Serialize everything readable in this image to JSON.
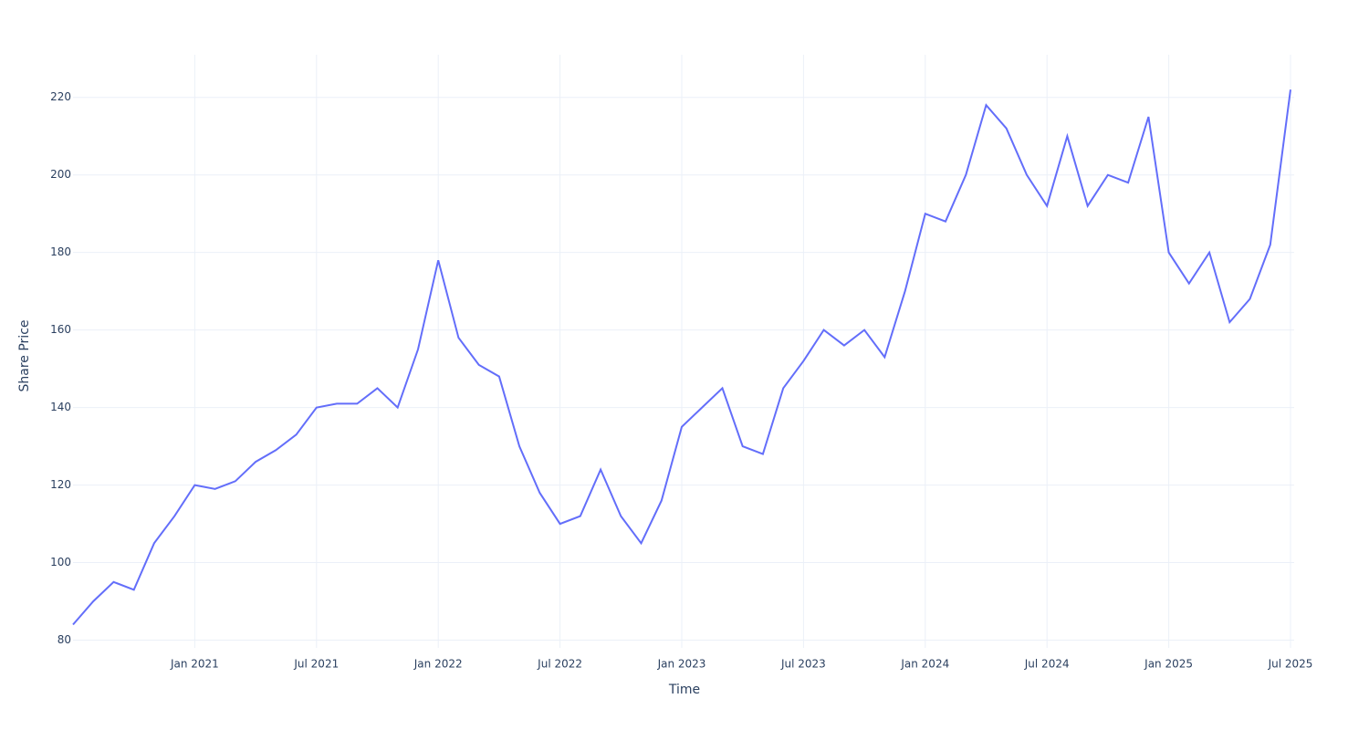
{
  "chart_data": {
    "type": "line",
    "x_label": "Time",
    "y_label": "Share Price",
    "x": [
      "2020-07",
      "2020-08",
      "2020-09",
      "2020-10",
      "2020-11",
      "2020-12",
      "2021-01",
      "2021-02",
      "2021-03",
      "2021-04",
      "2021-05",
      "2021-06",
      "2021-07",
      "2021-08",
      "2021-09",
      "2021-10",
      "2021-11",
      "2021-12",
      "2022-01",
      "2022-02",
      "2022-03",
      "2022-04",
      "2022-05",
      "2022-06",
      "2022-07",
      "2022-08",
      "2022-09",
      "2022-10",
      "2022-11",
      "2022-12",
      "2023-01",
      "2023-02",
      "2023-03",
      "2023-04",
      "2023-05",
      "2023-06",
      "2023-07",
      "2023-08",
      "2023-09",
      "2023-10",
      "2023-11",
      "2023-12",
      "2024-01",
      "2024-02",
      "2024-03",
      "2024-04",
      "2024-05",
      "2024-06",
      "2024-07",
      "2024-08",
      "2024-09",
      "2024-10",
      "2024-11",
      "2024-12",
      "2025-01",
      "2025-02",
      "2025-03",
      "2025-04",
      "2025-05",
      "2025-06",
      "2025-07"
    ],
    "series": [
      {
        "name": "Share Price",
        "color": "#636efa",
        "values": [
          84,
          90,
          95,
          93,
          105,
          112,
          120,
          119,
          121,
          126,
          129,
          133,
          140,
          141,
          141,
          145,
          140,
          155,
          178,
          158,
          151,
          148,
          130,
          118,
          110,
          112,
          124,
          112,
          105,
          116,
          135,
          140,
          145,
          130,
          128,
          145,
          152,
          160,
          156,
          160,
          153,
          170,
          190,
          188,
          200,
          218,
          212,
          200,
          192,
          210,
          192,
          200,
          198,
          215,
          180,
          172,
          180,
          162,
          168,
          182,
          222
        ]
      }
    ],
    "xlim": [
      "2020-07",
      "2025-07"
    ],
    "xticks": [
      {
        "value": "2021-01",
        "label": "Jan 2021"
      },
      {
        "value": "2021-07",
        "label": "Jul 2021"
      },
      {
        "value": "2022-01",
        "label": "Jan 2022"
      },
      {
        "value": "2022-07",
        "label": "Jul 2022"
      },
      {
        "value": "2023-01",
        "label": "Jan 2023"
      },
      {
        "value": "2023-07",
        "label": "Jul 2023"
      },
      {
        "value": "2024-01",
        "label": "Jan 2024"
      },
      {
        "value": "2024-07",
        "label": "Jul 2024"
      },
      {
        "value": "2025-01",
        "label": "Jan 2025"
      },
      {
        "value": "2025-07",
        "label": "Jul 2025"
      }
    ],
    "ylim": [
      78,
      231
    ],
    "yticks": [
      80,
      100,
      120,
      140,
      160,
      180,
      200,
      220
    ],
    "grid": true
  }
}
